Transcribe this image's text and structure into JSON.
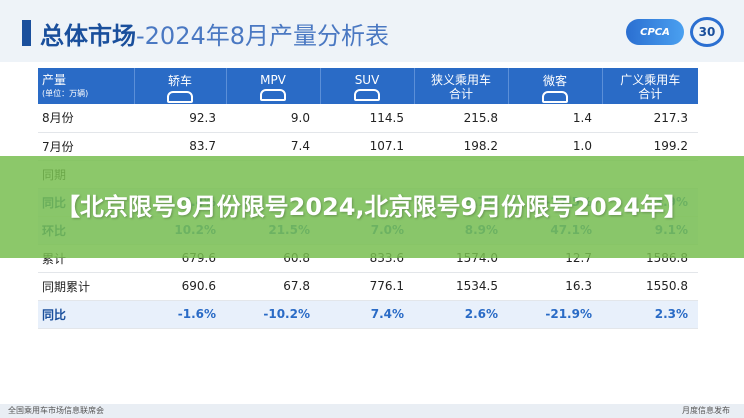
{
  "header": {
    "title_prefix": "总体市场",
    "title_suffix": "-2024年8月产量分析表",
    "logo_text": "CPCA",
    "logo_badge": "30"
  },
  "table": {
    "columns": [
      {
        "label": "产量",
        "unit": "(单位：万辆)"
      },
      {
        "label": "轿车"
      },
      {
        "label": "MPV"
      },
      {
        "label": "SUV"
      },
      {
        "label": "狭义乘用车",
        "label2": "合计"
      },
      {
        "label": "微客"
      },
      {
        "label": "广义乘用车",
        "label2": "合计"
      }
    ],
    "rows": [
      {
        "label": "8月份",
        "values": [
          "92.3",
          "9.0",
          "114.5",
          "215.8",
          "1.4",
          "217.3"
        ],
        "hl": false
      },
      {
        "label": "7月份",
        "values": [
          "83.7",
          "7.4",
          "107.1",
          "198.2",
          "1.0",
          "199.2"
        ],
        "hl": false
      },
      {
        "label": "同期",
        "values": [
          "",
          "",
          "",
          "",
          "",
          ""
        ],
        "hl": false
      },
      {
        "label": "同比",
        "values": [
          "-7.4%",
          "",
          "",
          "3.7%",
          "-27.5%",
          "-3.9%"
        ],
        "hl": true
      },
      {
        "label": "环比",
        "values": [
          "10.2%",
          "21.5%",
          "7.0%",
          "8.9%",
          "47.1%",
          "9.1%"
        ],
        "hl": true
      },
      {
        "label": "累计",
        "values": [
          "679.6",
          "60.8",
          "833.6",
          "1574.0",
          "12.7",
          "1586.8"
        ],
        "hl": false
      },
      {
        "label": "同期累计",
        "values": [
          "690.6",
          "67.8",
          "776.1",
          "1534.5",
          "16.3",
          "1550.8"
        ],
        "hl": false
      },
      {
        "label": "同比",
        "values": [
          "-1.6%",
          "-10.2%",
          "7.4%",
          "2.6%",
          "-21.9%",
          "2.3%"
        ],
        "hl": true
      }
    ]
  },
  "banner": {
    "text": "【北京限号9月份限号2024,北京限号9月份限号2024年】"
  },
  "footer": {
    "left": "全国乘用车市场信息联席会",
    "right": "月度信息发布"
  }
}
